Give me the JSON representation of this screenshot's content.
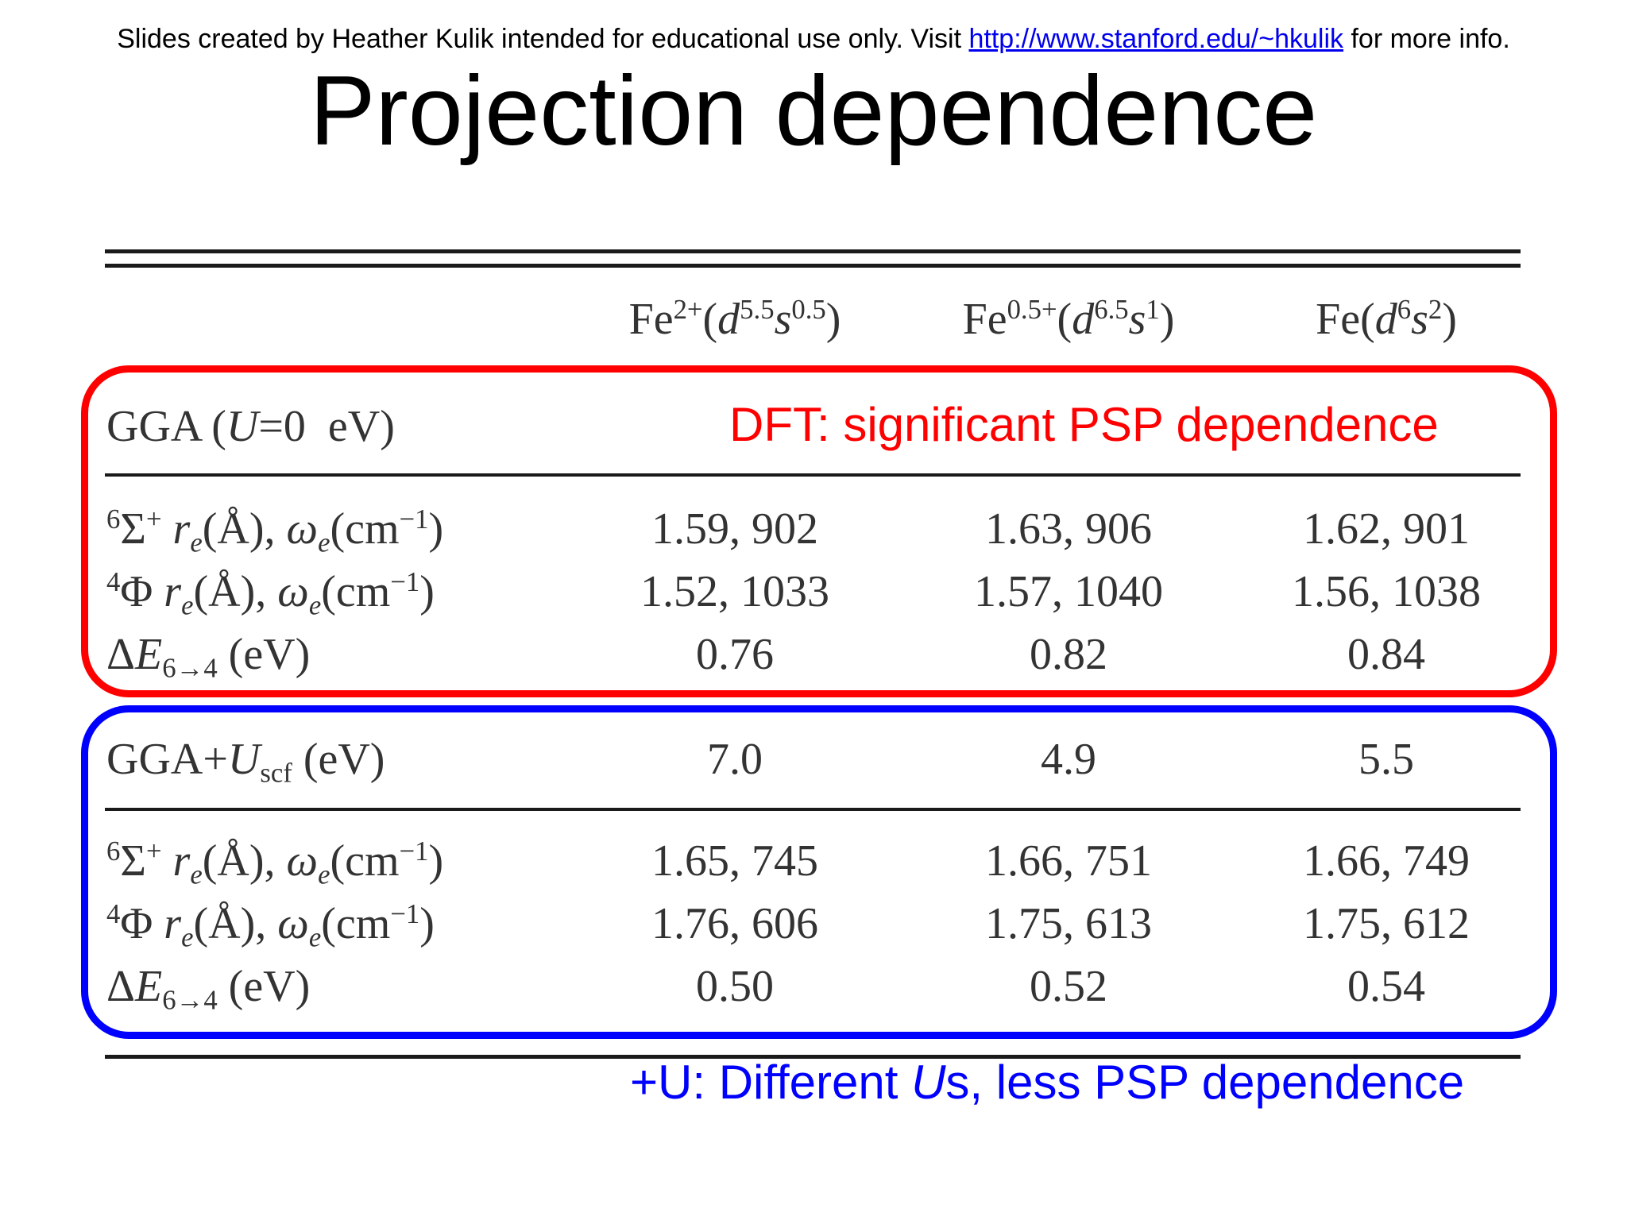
{
  "credit": {
    "before": "Slides created by Heather Kulik intended for educational use only. Visit ",
    "link": "http://www.stanford.edu/~hkulik",
    "after": " for more info."
  },
  "title": "Projection dependence",
  "table": {
    "columns": [
      {
        "base": "Fe",
        "charge": "2+",
        "config": "d5.5s0.5"
      },
      {
        "base": "Fe",
        "charge": "0.5+",
        "config": "d6.5s1"
      },
      {
        "base": "Fe",
        "charge": "",
        "config": "d6s2"
      }
    ],
    "gga_section": {
      "header": "GGA (U=0  eV)",
      "rows": [
        {
          "label": "6Σ+ re(Å), ωe(cm−1)",
          "values": [
            "1.59, 902",
            "1.63, 906",
            "1.62, 901"
          ]
        },
        {
          "label": "4Φ re(Å), ωe(cm−1)",
          "values": [
            "1.52, 1033",
            "1.57, 1040",
            "1.56, 1038"
          ]
        },
        {
          "label": "ΔE6→4 (eV)",
          "values": [
            "0.76",
            "0.82",
            "0.84"
          ]
        }
      ]
    },
    "ggau_section": {
      "header": "GGA+Uscf (eV)",
      "header_values": [
        "7.0",
        "4.9",
        "5.5"
      ],
      "rows": [
        {
          "label": "6Σ+ re(Å), ωe(cm−1)",
          "values": [
            "1.65, 745",
            "1.66, 751",
            "1.66, 749"
          ]
        },
        {
          "label": "4Φ re(Å), ωe(cm−1)",
          "values": [
            "1.76, 606",
            "1.75, 613",
            "1.75, 612"
          ]
        },
        {
          "label": "ΔE6→4 (eV)",
          "values": [
            "0.50",
            "0.52",
            "0.54"
          ]
        }
      ]
    }
  },
  "annotations": {
    "dft": "DFT: significant PSP dependence",
    "plus_u_before": "+U: Different ",
    "plus_u_italic": "U",
    "plus_u_after": "s, less PSP dependence"
  },
  "colors": {
    "red_box": "#ff0000",
    "blue_box": "#0000ff",
    "link": "#0000ee"
  }
}
